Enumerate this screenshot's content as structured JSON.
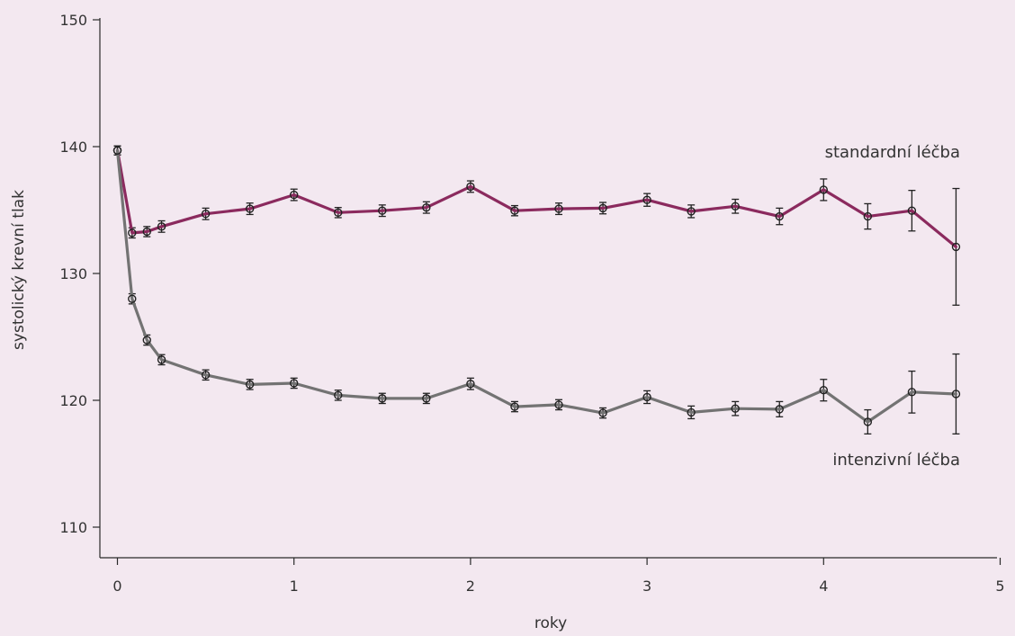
{
  "chart_data": {
    "type": "line",
    "title": "",
    "xlabel": "roky",
    "ylabel": "systolický krevní tlak",
    "xlim": [
      -0.1,
      5
    ],
    "ylim": [
      107,
      150
    ],
    "x_ticks": [
      0,
      1,
      2,
      3,
      4,
      5
    ],
    "y_ticks": [
      110,
      120,
      130,
      140,
      150
    ],
    "grid": false,
    "series": [
      {
        "name": "standardní léčba",
        "color": "#8b2a5e",
        "x": [
          0,
          0.083,
          0.167,
          0.25,
          0.5,
          0.75,
          1,
          1.25,
          1.5,
          1.75,
          2,
          2.25,
          2.5,
          2.75,
          3,
          3.25,
          3.5,
          3.75,
          4,
          4.25,
          4.5,
          4.75
        ],
        "y": [
          139.7,
          133.2,
          133.3,
          133.7,
          134.7,
          135.1,
          136.2,
          134.8,
          134.95,
          135.2,
          136.85,
          134.95,
          135.1,
          135.15,
          135.8,
          134.9,
          135.3,
          134.5,
          136.6,
          134.5,
          134.95,
          132.1
        ],
        "err": [
          0.35,
          0.4,
          0.4,
          0.45,
          0.45,
          0.45,
          0.45,
          0.4,
          0.45,
          0.45,
          0.45,
          0.4,
          0.45,
          0.45,
          0.5,
          0.5,
          0.55,
          0.65,
          0.85,
          1.0,
          1.6,
          4.6
        ]
      },
      {
        "name": "intenzivní léčba",
        "color": "#737373",
        "x": [
          0,
          0.083,
          0.167,
          0.25,
          0.5,
          0.75,
          1,
          1.25,
          1.5,
          1.75,
          2,
          2.25,
          2.5,
          2.75,
          3,
          3.25,
          3.5,
          3.75,
          4,
          4.25,
          4.5,
          4.75
        ],
        "y": [
          139.7,
          128.0,
          124.75,
          123.2,
          122.0,
          121.25,
          121.35,
          120.4,
          120.15,
          120.15,
          121.3,
          119.5,
          119.65,
          119.0,
          120.25,
          119.05,
          119.35,
          119.3,
          120.8,
          118.3,
          120.65,
          120.5
        ],
        "err": [
          0.35,
          0.4,
          0.4,
          0.4,
          0.4,
          0.4,
          0.4,
          0.4,
          0.4,
          0.4,
          0.45,
          0.4,
          0.4,
          0.4,
          0.5,
          0.5,
          0.55,
          0.6,
          0.85,
          0.95,
          1.65,
          3.15
        ]
      }
    ],
    "annotations": [
      {
        "text": "standardní léčba",
        "series": 0
      },
      {
        "text": "intenzivní léčba",
        "series": 1
      }
    ]
  }
}
